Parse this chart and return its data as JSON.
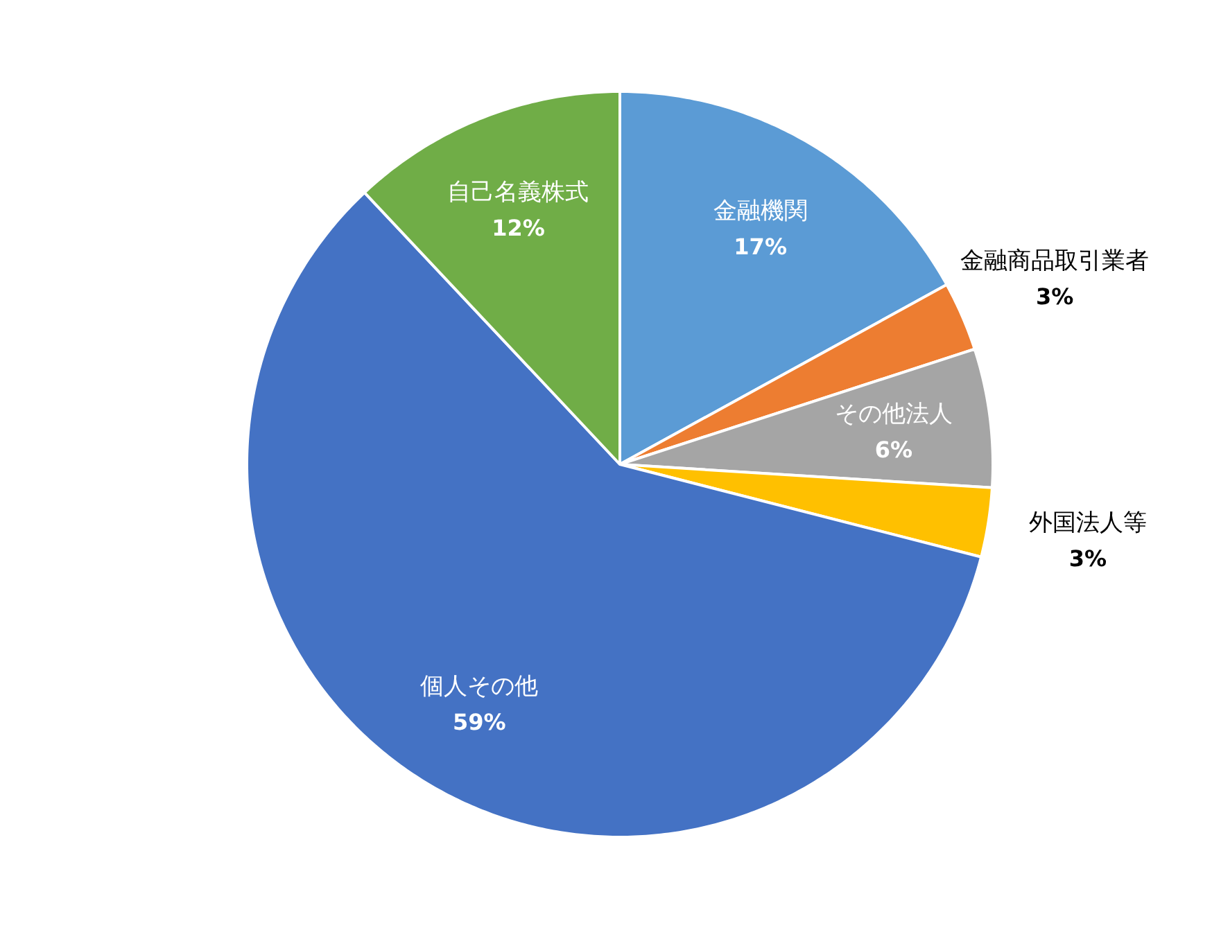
{
  "chart_data": {
    "type": "pie",
    "categories": [
      "金融機関",
      "金融商品取引業者",
      "その他法人",
      "外国法人等",
      "個人その他",
      "自己名義株式"
    ],
    "values": [
      17,
      3,
      6,
      3,
      59,
      12
    ],
    "value_labels": [
      "17%",
      "3%",
      "6%",
      "3%",
      "59%",
      "12%"
    ],
    "colors": [
      "#5b9bd5",
      "#ed7d31",
      "#a5a5a5",
      "#ffc000",
      "#4472c4",
      "#70ad47"
    ],
    "legend": false
  }
}
